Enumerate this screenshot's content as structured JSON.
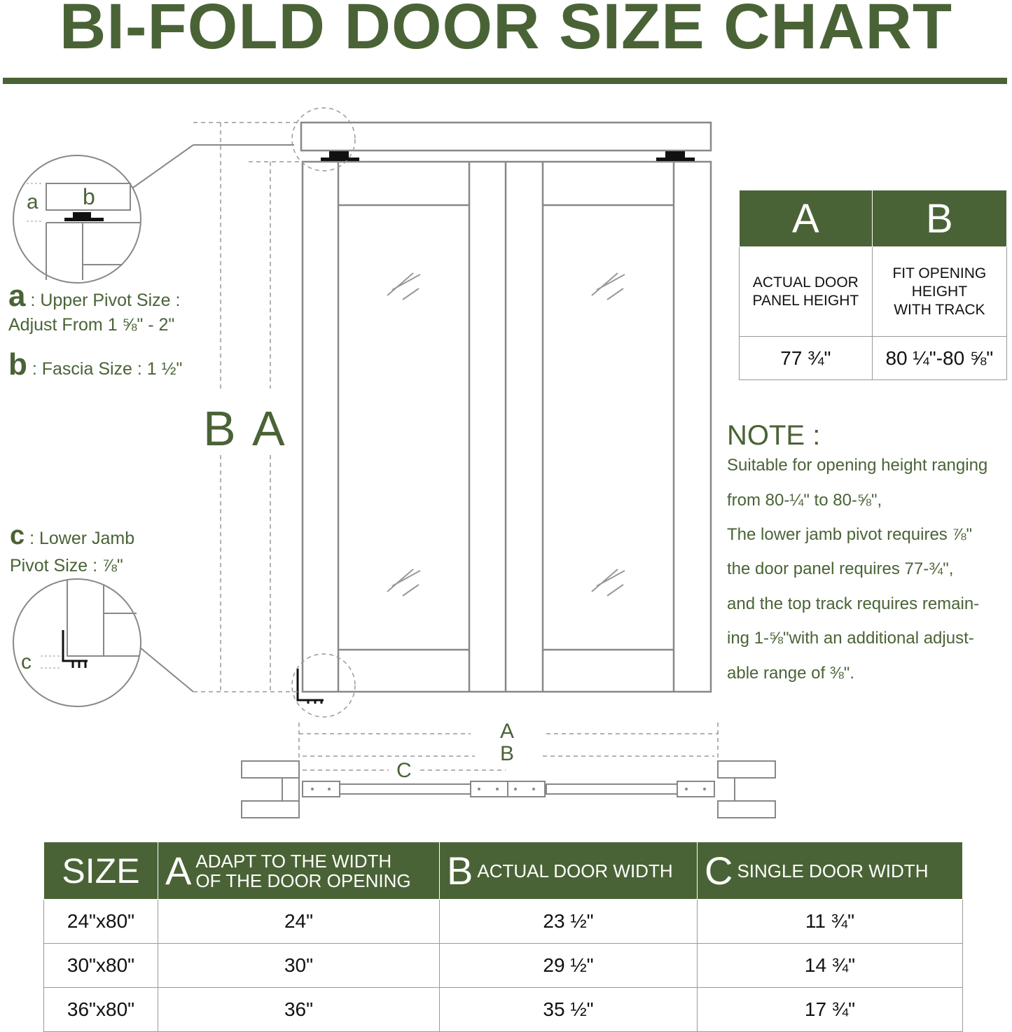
{
  "title": "BI-FOLD DOOR SIZE CHART",
  "colors": {
    "brand_green": "#4a6336",
    "line_gray": "#888888"
  },
  "detail_a": {
    "letter": "a",
    "label": ": Upper Pivot Size :",
    "detail": "Adjust From 1 ⅝\" - 2\""
  },
  "detail_b": {
    "letter": "b",
    "label": ": Fascia Size : 1 ½\""
  },
  "detail_c": {
    "letter": "c",
    "label": ": Lower Jamb",
    "detail": "Pivot Size : ⅞\""
  },
  "callout_labels": {
    "a": "a",
    "b": "b",
    "c": "c"
  },
  "dimension_labels": {
    "B": "B",
    "A": "A",
    "C": "C"
  },
  "height_table": {
    "headers": [
      "A",
      "B"
    ],
    "labels": [
      "ACTUAL DOOR\nPANEL HEIGHT",
      "FIT OPENING\nHEIGHT\nWITH TRACK"
    ],
    "values": [
      "77 ¾\"",
      "80 ¼\"-80 ⅝\""
    ]
  },
  "note": {
    "title": "NOTE :",
    "lines": [
      "Suitable for opening height ranging",
      "from 80-¼\" to 80-⅝\",",
      "The lower jamb pivot requires ⅞\"",
      "the door panel requires 77-¾\",",
      "and the top track requires remain-",
      "ing 1-⅝\"with an additional adjust-",
      "able range of ⅜\"."
    ]
  },
  "width_table": {
    "headers": [
      {
        "letter": "",
        "text": "SIZE"
      },
      {
        "letter": "A",
        "text": "ADAPT TO THE WIDTH\nOF THE DOOR OPENING"
      },
      {
        "letter": "B",
        "text": "ACTUAL DOOR WIDTH"
      },
      {
        "letter": "C",
        "text": "SINGLE DOOR WIDTH"
      }
    ],
    "rows": [
      [
        "24\"x80\"",
        "24\"",
        "23 ½\"",
        "11 ¾\""
      ],
      [
        "30\"x80\"",
        "30\"",
        "29 ½\"",
        "14 ¾\""
      ],
      [
        "36\"x80\"",
        "36\"",
        "35 ½\"",
        "17 ¾\""
      ]
    ]
  }
}
